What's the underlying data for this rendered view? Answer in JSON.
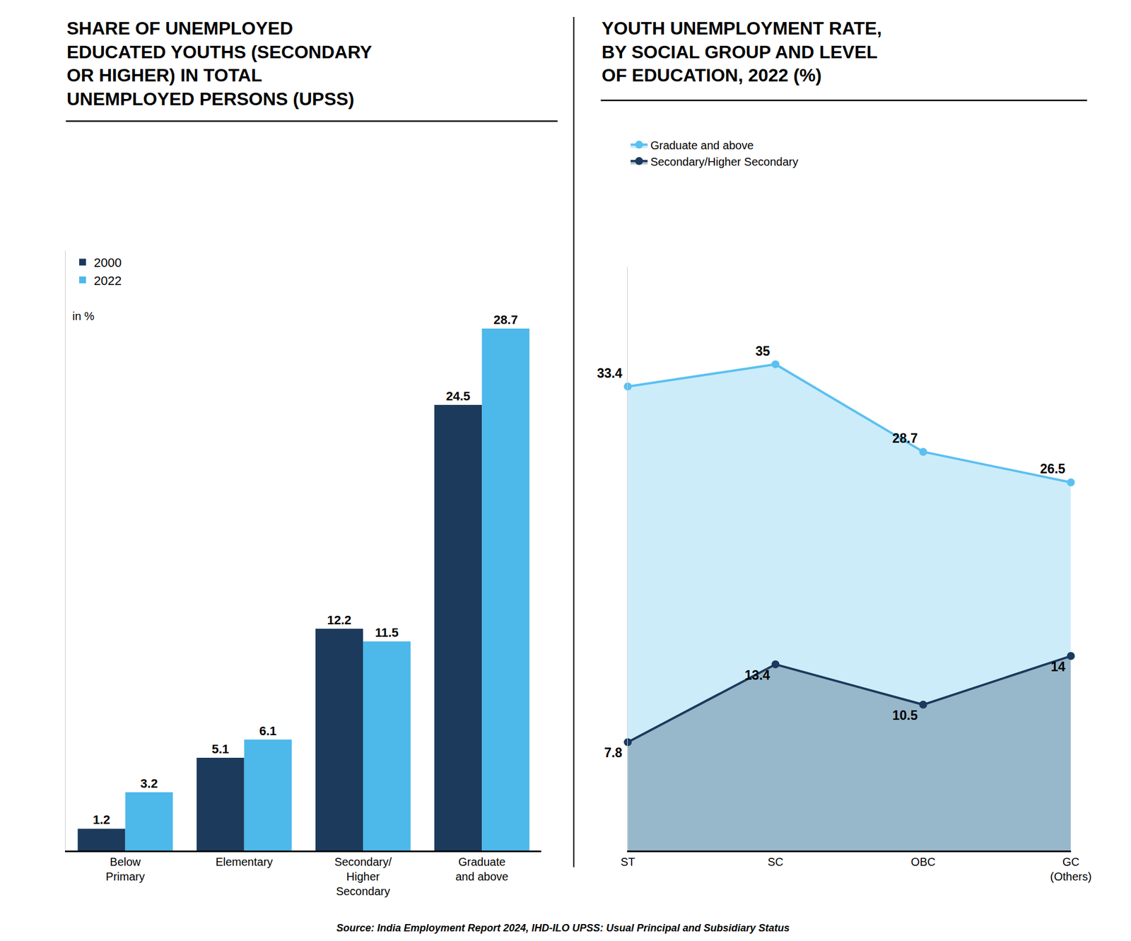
{
  "chart_data": [
    {
      "type": "bar",
      "title": "SHARE OF UNEMPLOYED\nEDUCATED YOUTHS (SECONDARY\nOR HIGHER) IN TOTAL\nUNEMPLOYED PERSONS (UPSS)",
      "categories": [
        "Below\nPrimary",
        "Elementary",
        "Secondary/\nHigher\nSecondary",
        "Graduate\nand above"
      ],
      "series": [
        {
          "name": "2000",
          "color": "#1b3a5c",
          "values": [
            1.2,
            5.1,
            12.2,
            24.5
          ]
        },
        {
          "name": "2022",
          "color": "#4db8ea",
          "values": [
            3.2,
            6.1,
            11.5,
            28.7
          ]
        }
      ],
      "ylim": [
        0,
        33
      ],
      "tick_labels": "x",
      "grid": false,
      "legend": "upper left",
      "data_labels": true,
      "annotations": [
        "in %"
      ]
    },
    {
      "type": "area",
      "title": "YOUTH UNEMPLOYMENT RATE,\nBY SOCIAL GROUP AND LEVEL\nOF EDUCATION, 2022 (%)",
      "categories": [
        "ST",
        "SC",
        "OBC",
        "GC\n(Others)"
      ],
      "series": [
        {
          "name": "Graduate and above",
          "color": "#5bc0f0",
          "marker": "circle",
          "values": [
            33.4,
            35.0,
            28.7,
            26.5
          ]
        },
        {
          "name": "Secondary/Higher Secondary",
          "color": "#1b3a5c",
          "marker": "circle",
          "values": [
            7.8,
            13.4,
            10.5,
            14.0
          ]
        }
      ],
      "ylim": [
        0,
        42
      ],
      "tick_labels": "x",
      "grid": false,
      "legend": "upper left",
      "data_labels": true
    }
  ],
  "source": "Source: India Employment Report 2024, IHD-ILO UPSS: Usual Principal and Subsidiary Status"
}
